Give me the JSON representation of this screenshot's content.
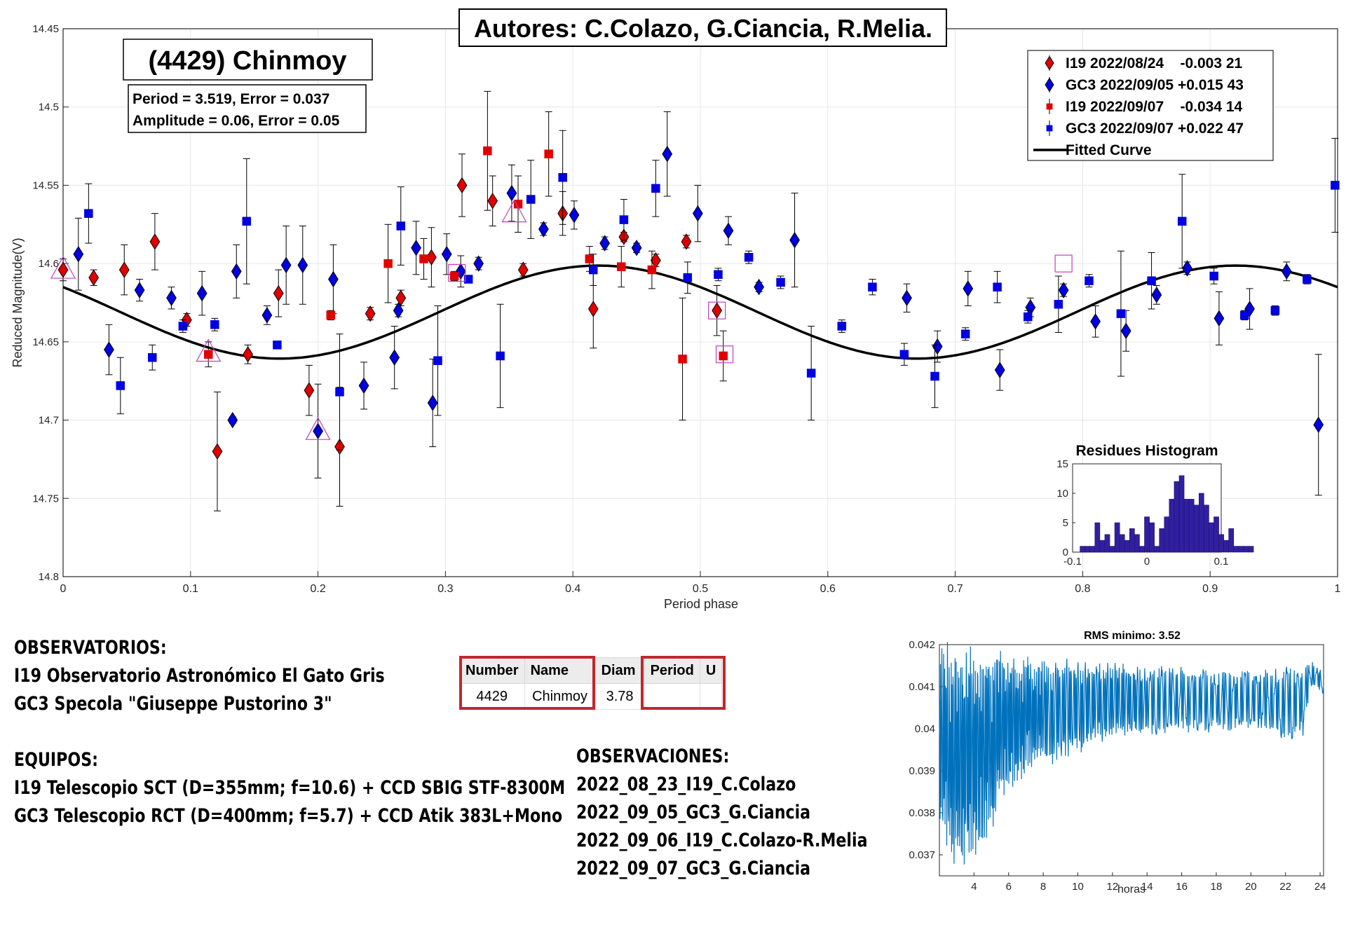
{
  "chart_data": [
    {
      "type": "scatter",
      "title": "(4429) Chinmoy",
      "authors": "Autores: C.Colazo, G.Ciancia, R.Melia.",
      "stats": [
        "Period =  3.519, Error = 0.037",
        "Amplitude = 0.06, Error = 0.05"
      ],
      "xlabel": "Period phase",
      "ylabel": "Reduced Magnitude(V)",
      "xlim": [
        0,
        1
      ],
      "ylim": [
        14.45,
        14.8
      ],
      "y_reversed": true,
      "grid": true,
      "legend_position": "top-right",
      "x_ticks": [
        "0",
        "0.1",
        "0.2",
        "0.3",
        "0.4",
        "0.5",
        "0.6",
        "0.7",
        "0.8",
        "0.9",
        "1"
      ],
      "y_ticks": [
        "14.45",
        "14.5",
        "14.55",
        "14.6",
        "14.65",
        "14.7",
        "14.75",
        "14.8"
      ],
      "series": [
        {
          "name": "I19 2022/08/24    -0.003 21",
          "marker": "diamond",
          "color": "#e00000",
          "points": [
            [
              0.0,
              14.604,
              0.007
            ],
            [
              0.024,
              14.609,
              0.005
            ],
            [
              0.048,
              14.604,
              0.016
            ],
            [
              0.072,
              14.586,
              0.018
            ],
            [
              0.097,
              14.636,
              0.004
            ],
            [
              0.121,
              14.72,
              0.038
            ],
            [
              0.145,
              14.658,
              0.006
            ],
            [
              0.169,
              14.619,
              0.015
            ],
            [
              0.193,
              14.681,
              0.016
            ],
            [
              0.217,
              14.717,
              0.038
            ],
            [
              0.241,
              14.632,
              0.004
            ],
            [
              0.265,
              14.622,
              0.005
            ],
            [
              0.289,
              14.596,
              0.019
            ],
            [
              0.313,
              14.55,
              0.02
            ],
            [
              0.337,
              14.56,
              0.016
            ],
            [
              0.361,
              14.604,
              0.004
            ],
            [
              0.392,
              14.568,
              0.014
            ],
            [
              0.416,
              14.629,
              0.025
            ],
            [
              0.44,
              14.583,
              0.003
            ],
            [
              0.465,
              14.598,
              0.004
            ],
            [
              0.489,
              14.586,
              0.004
            ],
            [
              0.513,
              14.63,
              0.016
            ]
          ]
        },
        {
          "name": "GC3 2022/09/05 +0.015 43",
          "marker": "diamond",
          "color": "#0000e0",
          "points": [
            [
              0.012,
              14.594,
              0.023
            ],
            [
              0.036,
              14.655,
              0.016
            ],
            [
              0.06,
              14.617,
              0.007
            ],
            [
              0.085,
              14.622,
              0.007
            ],
            [
              0.109,
              14.619,
              0.014
            ],
            [
              0.133,
              14.7,
              0.002
            ],
            [
              0.136,
              14.605,
              0.017
            ],
            [
              0.16,
              14.633,
              0.006
            ],
            [
              0.175,
              14.601,
              0.025
            ],
            [
              0.188,
              14.601,
              0.025
            ],
            [
              0.2,
              14.707,
              0.03
            ],
            [
              0.212,
              14.61,
              0.022
            ],
            [
              0.236,
              14.678,
              0.015
            ],
            [
              0.26,
              14.66,
              0.02
            ],
            [
              0.263,
              14.63,
              0.004
            ],
            [
              0.277,
              14.59,
              0.017
            ],
            [
              0.29,
              14.689,
              0.028
            ],
            [
              0.301,
              14.594,
              0.013
            ],
            [
              0.312,
              14.605,
              0.01
            ],
            [
              0.326,
              14.6,
              0.004
            ],
            [
              0.352,
              14.555,
              0.018
            ],
            [
              0.377,
              14.578,
              0.004
            ],
            [
              0.401,
              14.569,
              0.009
            ],
            [
              0.425,
              14.587,
              0.004
            ],
            [
              0.45,
              14.59,
              0.003
            ],
            [
              0.474,
              14.53,
              0.027
            ],
            [
              0.498,
              14.568,
              0.018
            ],
            [
              0.522,
              14.579,
              0.009
            ],
            [
              0.546,
              14.615,
              0.003
            ],
            [
              0.574,
              14.585,
              0.03
            ],
            [
              0.662,
              14.622,
              0.009
            ],
            [
              0.686,
              14.653,
              0.01
            ],
            [
              0.71,
              14.616,
              0.011
            ],
            [
              0.735,
              14.668,
              0.013
            ],
            [
              0.759,
              14.628,
              0.006
            ],
            [
              0.785,
              14.617,
              0.004
            ],
            [
              0.81,
              14.637,
              0.01
            ],
            [
              0.834,
              14.643,
              0.013
            ],
            [
              0.858,
              14.62,
              0.006
            ],
            [
              0.882,
              14.603,
              0.004
            ],
            [
              0.907,
              14.635,
              0.017
            ],
            [
              0.931,
              14.629,
              0.013
            ],
            [
              0.96,
              14.605,
              0.006
            ],
            [
              0.985,
              14.703,
              0.045
            ]
          ]
        },
        {
          "name": "I19 2022/09/07    -0.034 14",
          "marker": "square",
          "color": "#e00000",
          "points": [
            [
              0.114,
              14.658,
              0.008
            ],
            [
              0.21,
              14.633,
              0.003
            ],
            [
              0.255,
              14.6,
              0.025
            ],
            [
              0.283,
              14.597,
              0.013
            ],
            [
              0.307,
              14.608,
              0.003
            ],
            [
              0.333,
              14.528,
              0.038
            ],
            [
              0.357,
              14.562,
              0.018
            ],
            [
              0.381,
              14.53,
              0.027
            ],
            [
              0.413,
              14.597,
              0.008
            ],
            [
              0.438,
              14.602,
              0.013
            ],
            [
              0.462,
              14.604,
              0.012
            ],
            [
              0.486,
              14.661,
              0.039
            ],
            [
              0.518,
              14.659,
              0.016
            ]
          ]
        },
        {
          "name": "GC3 2022/09/07 +0.022 47",
          "marker": "square",
          "color": "#0000e0",
          "points": [
            [
              0.02,
              14.568,
              0.019
            ],
            [
              0.045,
              14.678,
              0.018
            ],
            [
              0.07,
              14.66,
              0.008
            ],
            [
              0.094,
              14.64,
              0.004
            ],
            [
              0.119,
              14.639,
              0.004
            ],
            [
              0.144,
              14.573,
              0.04
            ],
            [
              0.168,
              14.652,
              0.002
            ],
            [
              0.217,
              14.682,
              0.037
            ],
            [
              0.265,
              14.576,
              0.025
            ],
            [
              0.294,
              14.662,
              0.035
            ],
            [
              0.318,
              14.61,
              0.002
            ],
            [
              0.343,
              14.659,
              0.033
            ],
            [
              0.367,
              14.559,
              0.025
            ],
            [
              0.392,
              14.545,
              0.03
            ],
            [
              0.416,
              14.604,
              0.01
            ],
            [
              0.44,
              14.572,
              0.013
            ],
            [
              0.465,
              14.552,
              0.018
            ],
            [
              0.49,
              14.609,
              0.01
            ],
            [
              0.514,
              14.607,
              0.004
            ],
            [
              0.538,
              14.596,
              0.004
            ],
            [
              0.563,
              14.612,
              0.004
            ],
            [
              0.587,
              14.67,
              0.03
            ],
            [
              0.611,
              14.64,
              0.004
            ],
            [
              0.635,
              14.615,
              0.005
            ],
            [
              0.66,
              14.658,
              0.007
            ],
            [
              0.684,
              14.672,
              0.02
            ],
            [
              0.708,
              14.645,
              0.004
            ],
            [
              0.733,
              14.615,
              0.01
            ],
            [
              0.757,
              14.634,
              0.004
            ],
            [
              0.781,
              14.626,
              0.018
            ],
            [
              0.805,
              14.611,
              0.004
            ],
            [
              0.83,
              14.632,
              0.04
            ],
            [
              0.854,
              14.611,
              0.018
            ],
            [
              0.878,
              14.573,
              0.03
            ],
            [
              0.903,
              14.608,
              0.005
            ],
            [
              0.927,
              14.633,
              0.003
            ],
            [
              0.951,
              14.63,
              0.003
            ],
            [
              0.976,
              14.61,
              0.003
            ],
            [
              0.998,
              14.55,
              0.03
            ]
          ]
        },
        {
          "name": "Fitted Curve",
          "type": "line",
          "color": "#000000",
          "mean": 14.631,
          "amplitude": 0.0297,
          "phase_max_brightness": 0.42
        }
      ],
      "highlighted_points": [
        {
          "marker": "triangle",
          "x": 0.0,
          "y": 14.604
        },
        {
          "marker": "triangle",
          "x": 0.114,
          "y": 14.657
        },
        {
          "marker": "triangle",
          "x": 0.2,
          "y": 14.707
        },
        {
          "marker": "triangle",
          "x": 0.354,
          "y": 14.568
        },
        {
          "marker": "square",
          "x": 0.309,
          "y": 14.606
        },
        {
          "marker": "square",
          "x": 0.513,
          "y": 14.63
        },
        {
          "marker": "square",
          "x": 0.519,
          "y": 14.658
        },
        {
          "marker": "square",
          "x": 0.785,
          "y": 14.6
        }
      ]
    },
    {
      "type": "bar",
      "title": "Residues Histogram",
      "xlim": [
        -0.1,
        0.1
      ],
      "ylim": [
        0,
        15
      ],
      "x_ticks": [
        "-0.1",
        "0",
        "0.1"
      ],
      "y_ticks": [
        "0",
        "5",
        "10",
        "15"
      ],
      "bin_width": 0.00667,
      "bin_start": -0.09,
      "values": [
        1,
        1,
        1,
        5,
        2,
        3,
        1,
        5,
        3,
        2,
        4,
        3,
        1,
        6,
        5,
        1,
        4,
        6,
        9,
        12,
        13,
        9,
        9,
        8,
        10,
        8,
        5,
        6,
        3,
        2,
        4,
        1,
        1,
        1,
        1
      ]
    },
    {
      "type": "line",
      "title": "RMS minimo: 3.52",
      "xlabel": "horas",
      "xlim": [
        2,
        24.2
      ],
      "ylim": [
        0.0365,
        0.042
      ],
      "x_ticks": [
        "4",
        "6",
        "8",
        "10",
        "12",
        "14",
        "16",
        "18",
        "20",
        "22",
        "24"
      ],
      "y_ticks": [
        "0.037",
        "0.038",
        "0.039",
        "0.04",
        "0.041",
        "0.042"
      ],
      "color": "#0072bd",
      "envelope": [
        [
          2.0,
          0.0375,
          0.0421
        ],
        [
          2.5,
          0.037,
          0.0421
        ],
        [
          3.0,
          0.0366,
          0.042
        ],
        [
          3.5,
          0.0366,
          0.042
        ],
        [
          4.0,
          0.0368,
          0.042
        ],
        [
          4.5,
          0.0371,
          0.042
        ],
        [
          5.0,
          0.0375,
          0.042
        ],
        [
          5.5,
          0.038,
          0.0419
        ],
        [
          6.0,
          0.0384,
          0.0419
        ],
        [
          6.5,
          0.0386,
          0.0418
        ],
        [
          7.0,
          0.0389,
          0.0418
        ],
        [
          8.0,
          0.0391,
          0.0417
        ],
        [
          9.0,
          0.0392,
          0.0417
        ],
        [
          10.0,
          0.0394,
          0.0417
        ],
        [
          11.0,
          0.0396,
          0.0416
        ],
        [
          12.0,
          0.0398,
          0.0416
        ],
        [
          14.0,
          0.0398,
          0.0415
        ],
        [
          16.0,
          0.0399,
          0.0415
        ],
        [
          18.0,
          0.0399,
          0.0414
        ],
        [
          20.0,
          0.04,
          0.0414
        ],
        [
          22.0,
          0.0397,
          0.0415
        ],
        [
          23.0,
          0.0398,
          0.0415
        ],
        [
          23.5,
          0.041,
          0.0416
        ],
        [
          24.2,
          0.0408,
          0.0414
        ]
      ]
    }
  ],
  "observatorios": {
    "heading": "OBSERVATORIOS:",
    "lines": [
      "I19 Observatorio Astronómico El Gato Gris",
      "GC3 Specola \"Giuseppe Pustorino 3\""
    ]
  },
  "equipos": {
    "heading": "EQUIPOS:",
    "lines": [
      "I19 Telescopio SCT (D=355mm; f=10.6) + CCD SBIG STF-8300M",
      "GC3 Telescopio RCT (D=400mm; f=5.7) + CCD Atik 383L+Mono"
    ]
  },
  "observaciones": {
    "heading": "OBSERVACIONES:",
    "lines": [
      "2022_08_23_I19_C.Colazo",
      "2022_09_05_GC3_G.Ciancia",
      "2022_09_06_I19_C.Colazo-R.Melia",
      "2022_09_07_GC3_G.Ciancia"
    ]
  },
  "info_table": {
    "headers": [
      "Number",
      "Name",
      "Diam",
      "Period",
      "U"
    ],
    "row": [
      "4429",
      "Chinmoy",
      "3.78",
      "",
      ""
    ]
  },
  "colors": {
    "red": "#e00000",
    "blue": "#0000e0",
    "highlight": "#c040c0",
    "rms_line": "#0072bd",
    "histogram": "#3020a0",
    "table_box": "#c0282e"
  }
}
